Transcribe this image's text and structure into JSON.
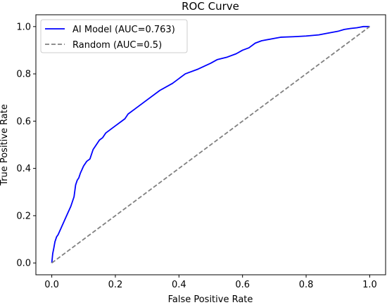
{
  "chart_data": {
    "type": "line",
    "title": "ROC Curve",
    "xlabel": "False Positive Rate",
    "ylabel": "True Positive Rate",
    "xlim": [
      -0.05,
      1.05
    ],
    "ylim": [
      -0.05,
      1.05
    ],
    "x_ticks": [
      "0.0",
      "0.2",
      "0.4",
      "0.6",
      "0.8",
      "1.0"
    ],
    "y_ticks": [
      "0.0",
      "0.2",
      "0.4",
      "0.6",
      "0.8",
      "1.0"
    ],
    "grid": false,
    "legend_position": "top-left",
    "series": [
      {
        "name": "AI Model (AUC=0.763)",
        "color": "#0000ff",
        "style": "solid",
        "x": [
          0.0,
          0.003,
          0.006,
          0.01,
          0.015,
          0.02,
          0.03,
          0.04,
          0.05,
          0.06,
          0.065,
          0.07,
          0.075,
          0.08,
          0.085,
          0.09,
          0.1,
          0.11,
          0.12,
          0.125,
          0.13,
          0.14,
          0.15,
          0.16,
          0.17,
          0.18,
          0.2,
          0.22,
          0.23,
          0.24,
          0.26,
          0.3,
          0.34,
          0.38,
          0.42,
          0.46,
          0.5,
          0.52,
          0.55,
          0.58,
          0.6,
          0.62,
          0.64,
          0.66,
          0.7,
          0.72,
          0.76,
          0.8,
          0.84,
          0.86,
          0.9,
          0.92,
          0.94,
          0.96,
          0.98,
          1.0
        ],
        "y": [
          0.0,
          0.04,
          0.06,
          0.09,
          0.11,
          0.12,
          0.15,
          0.18,
          0.21,
          0.24,
          0.26,
          0.28,
          0.33,
          0.35,
          0.36,
          0.38,
          0.41,
          0.43,
          0.44,
          0.46,
          0.48,
          0.5,
          0.52,
          0.53,
          0.55,
          0.56,
          0.58,
          0.6,
          0.61,
          0.63,
          0.65,
          0.69,
          0.73,
          0.76,
          0.8,
          0.82,
          0.845,
          0.86,
          0.87,
          0.885,
          0.9,
          0.91,
          0.93,
          0.94,
          0.95,
          0.955,
          0.957,
          0.96,
          0.965,
          0.97,
          0.98,
          0.988,
          0.992,
          0.995,
          1.0,
          1.0
        ]
      },
      {
        "name": "Random (AUC=0.5)",
        "color": "#808080",
        "style": "dashed",
        "x": [
          0.0,
          1.0
        ],
        "y": [
          0.0,
          1.0
        ]
      }
    ]
  }
}
